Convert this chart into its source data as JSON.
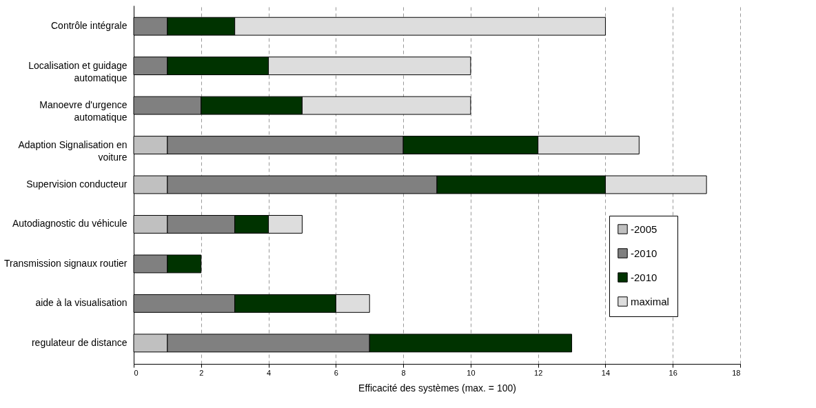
{
  "chart_data": {
    "type": "bar",
    "orientation": "horizontal",
    "stacked": true,
    "xlabel": "Efficacité des systèmes (max. = 100)",
    "categories": [
      "Contrôle intégrale",
      "Localisation et guidage automatique",
      "Manoevre d'urgence automatique",
      "Adaption Signalisation en voiture",
      "Supervision conducteur",
      "Autodiagnostic du véhicule",
      "Transmission signaux routier",
      "aide à la visualisation",
      "regulateur de distance"
    ],
    "series": [
      {
        "name": "-2005",
        "color": "#c0c0c0",
        "values": [
          null,
          null,
          null,
          1,
          1,
          1,
          null,
          null,
          1
        ]
      },
      {
        "name": "-2010",
        "color": "#808080",
        "values": [
          1,
          1,
          2,
          7,
          8,
          2,
          1,
          3,
          6
        ]
      },
      {
        "name": "-2010",
        "color": "#003300",
        "values": [
          2,
          3,
          3,
          4,
          5,
          1,
          1,
          3,
          6
        ]
      },
      {
        "name": "maximal",
        "color": "#dddddd",
        "values": [
          11,
          6,
          5,
          3,
          3,
          1,
          null,
          1,
          null
        ]
      }
    ],
    "xlim": [
      0,
      18
    ],
    "xticks": [
      0,
      2,
      4,
      6,
      8,
      10,
      12,
      14,
      16,
      18
    ],
    "grid": "x",
    "legend": "right"
  }
}
